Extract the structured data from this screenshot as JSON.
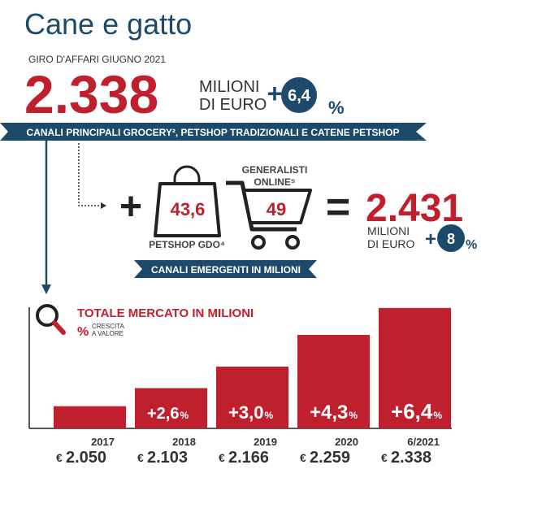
{
  "title": "Cane e gatto",
  "headline": {
    "label": "GIRO D'AFFARI GIUGNO 2021",
    "value": "2.338",
    "unit_lines": [
      "MILIONI",
      "DI EURO"
    ],
    "growth_sign": "+",
    "growth": "6,4",
    "growth_unit": "%"
  },
  "main_channels": "CANALI PRINCIPALI GROCERY², PETSHOP TRADIZIONALI E CATENE PETSHOP",
  "emerging": {
    "plus": "+",
    "petshop_value": "43,6",
    "petshop_label": "PETSHOP GDO⁴",
    "online_label": [
      "GENERALISTI",
      "ONLINE⁵"
    ],
    "online_value": "49",
    "equals": "=",
    "total": "2.431",
    "unit_lines": [
      "MILIONI",
      "DI EURO"
    ],
    "growth_sign": "+",
    "growth": "8",
    "growth_unit": "%",
    "banner": "CANALI EMERGENTI IN MILIONI"
  },
  "chart_data": {
    "type": "bar",
    "title": "TOTALE MERCATO IN MILIONI",
    "legend_symbol": "%",
    "legend_text": [
      "CRESCITA",
      "A VALORE"
    ],
    "categories": [
      "2017",
      "2018",
      "2019",
      "2020",
      "6/2021"
    ],
    "values": [
      2050,
      2103,
      2166,
      2259,
      2338
    ],
    "value_labels": [
      "2.050",
      "2.103",
      "2.166",
      "2.259",
      "2.338"
    ],
    "currency": "€",
    "color": "#c0202e",
    "ylim": [
      1985,
      2340
    ],
    "growth": {
      "values": [
        null,
        2.6,
        3.0,
        4.3,
        6.4
      ],
      "value_labels": [
        null,
        "+2,6",
        "+3,0",
        "+4,3",
        "+6,4"
      ],
      "unit": "%"
    }
  }
}
